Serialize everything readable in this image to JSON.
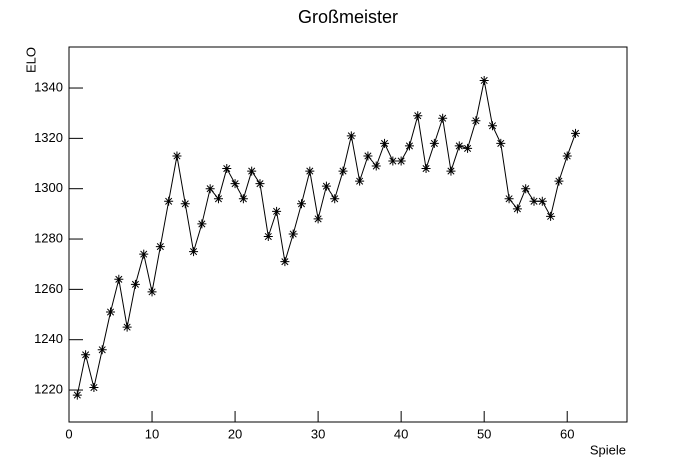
{
  "chart_data": {
    "type": "line",
    "title": "Großmeister",
    "x_label": "Spiele",
    "y_label": "ELO",
    "x": [
      1,
      2,
      3,
      4,
      5,
      6,
      7,
      8,
      9,
      10,
      11,
      12,
      13,
      14,
      15,
      16,
      17,
      18,
      19,
      20,
      21,
      22,
      23,
      24,
      25,
      26,
      27,
      28,
      29,
      30,
      31,
      32,
      33,
      34,
      35,
      36,
      37,
      38,
      39,
      40,
      41,
      42,
      43,
      44,
      45,
      46,
      47,
      48,
      49,
      50,
      51,
      52,
      53,
      54,
      55,
      56,
      57,
      58,
      59,
      60,
      61
    ],
    "values": [
      1218,
      1234,
      1221,
      1236,
      1251,
      1264,
      1245,
      1262,
      1274,
      1259,
      1277,
      1295,
      1313,
      1294,
      1275,
      1286,
      1300,
      1296,
      1308,
      1302,
      1296,
      1307,
      1302,
      1281,
      1291,
      1271,
      1282,
      1294,
      1307,
      1288,
      1301,
      1296,
      1307,
      1321,
      1303,
      1313,
      1309,
      1318,
      1311,
      1311,
      1317,
      1329,
      1308,
      1318,
      1328,
      1307,
      1317,
      1316,
      1327,
      1343,
      1325,
      1318,
      1296,
      1292,
      1300,
      1295,
      1295,
      1289,
      1303,
      1313,
      1322
    ],
    "color": "#000000",
    "marker": "star",
    "xlim": [
      0,
      67.2
    ],
    "xticks": [
      0,
      10,
      20,
      30,
      40,
      50,
      60
    ],
    "ylim": [
      1207.3,
      1356.3
    ],
    "yticks": [
      1220,
      1240,
      1260,
      1280,
      1300,
      1320,
      1340
    ]
  }
}
